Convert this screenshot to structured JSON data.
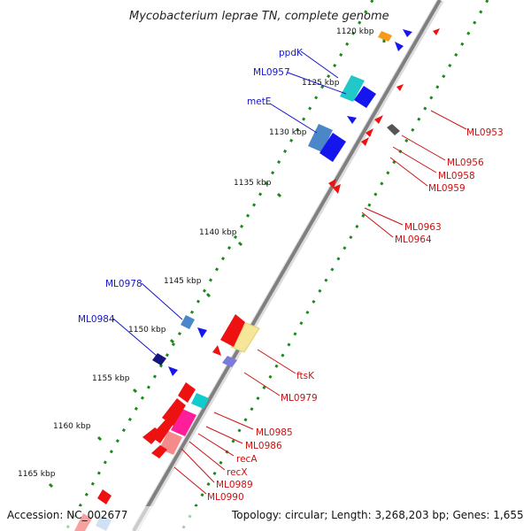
{
  "map": {
    "title": "Mycobacterium leprae TN, complete genome",
    "accession": "Accession: NC_002677",
    "summary": "Topology: circular; Length: 3,268,203 bp; Genes: 1,655",
    "colors": {
      "backbone": "#8a8a8a",
      "gc_dots": "#1a8a1a",
      "forward_label": "#1515cc",
      "reverse_label": "#cc1111"
    },
    "ticks": [
      "1120 kbp",
      "1125 kbp",
      "1130 kbp",
      "1135 kbp",
      "1140 kbp",
      "1145 kbp",
      "1150 kbp",
      "1155 kbp",
      "1160 kbp",
      "1165 kbp"
    ],
    "forward_labels": [
      "ppdK",
      "ML0957",
      "metE",
      "ML0978",
      "ML0984"
    ],
    "reverse_labels": [
      "ML0953",
      "ML0956",
      "ML0958",
      "ML0959",
      "ML0963",
      "ML0964",
      "ftsK",
      "ML0979",
      "ML0985",
      "ML0986",
      "recA",
      "recX",
      "ML0989",
      "ML0990"
    ]
  }
}
